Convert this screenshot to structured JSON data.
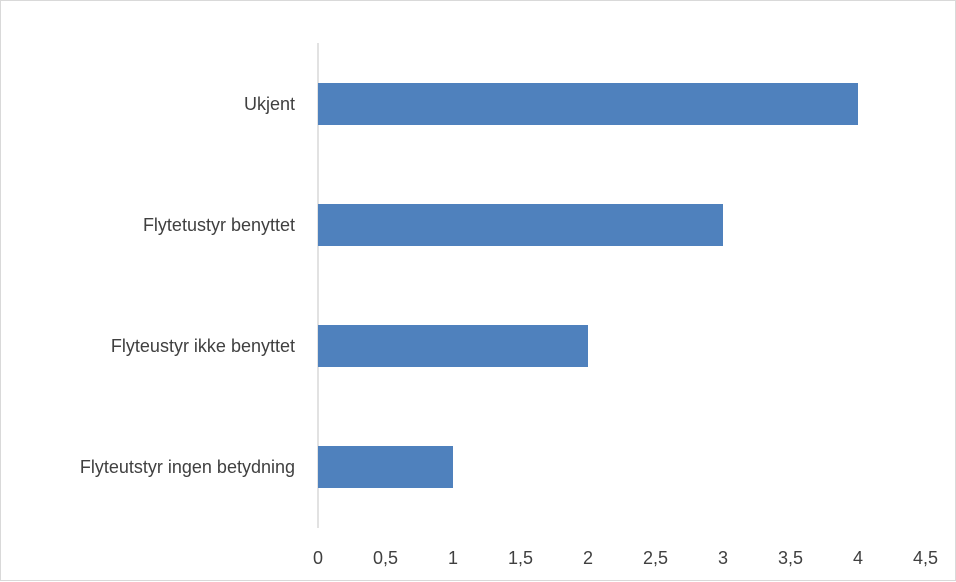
{
  "chart_data": {
    "type": "bar",
    "orientation": "horizontal",
    "categories": [
      "Ukjent",
      "Flytetustyr benyttet",
      "Flyteustyr ikke benyttet",
      "Flyteutstyr ingen betydning"
    ],
    "values": [
      4,
      3,
      2,
      1
    ],
    "xlim": [
      0,
      4.5
    ],
    "xticks": [
      "0",
      "0,5",
      "1",
      "1,5",
      "2",
      "2,5",
      "3",
      "3,5",
      "4",
      "4,5"
    ],
    "title": "",
    "xlabel": "",
    "ylabel": "",
    "grid": false,
    "legend": "none",
    "bar_color": "#4f81bd",
    "axis_color": "#d9d9d9"
  }
}
